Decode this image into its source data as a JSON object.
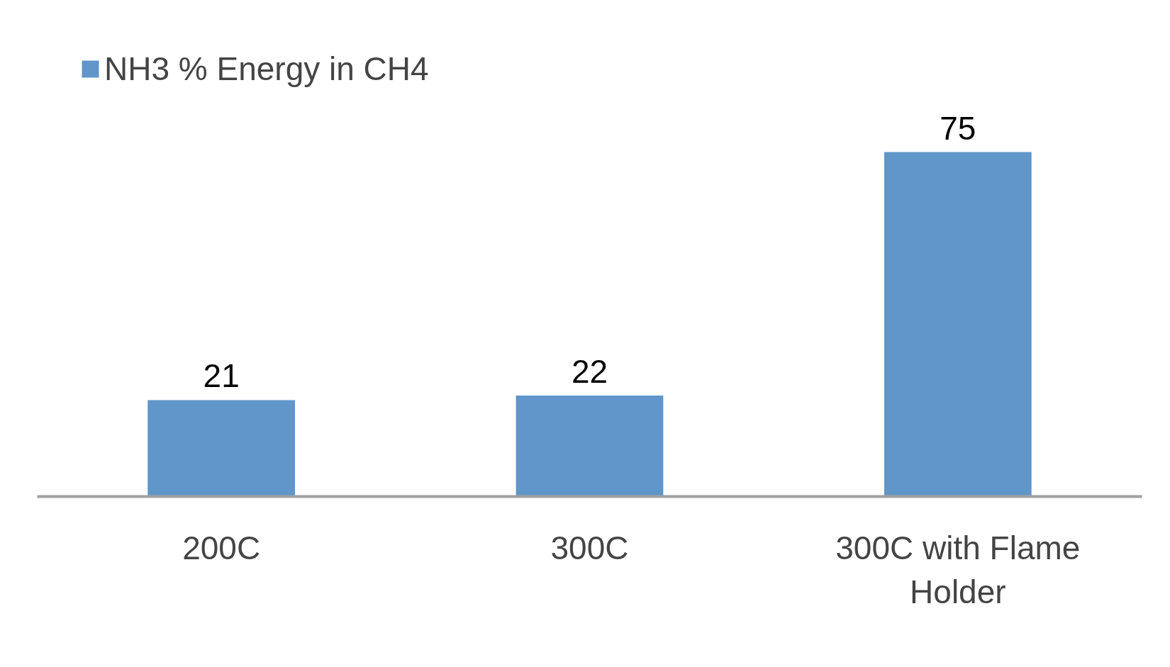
{
  "chart_data": {
    "type": "bar",
    "categories": [
      "200C",
      "300C",
      "300C with Flame Holder"
    ],
    "series": [
      {
        "name": "NH3 % Energy in CH4",
        "color": "#6096c9",
        "values": [
          21,
          22,
          75
        ]
      }
    ],
    "data_labels": true,
    "legend": "top left",
    "grid": false
  }
}
